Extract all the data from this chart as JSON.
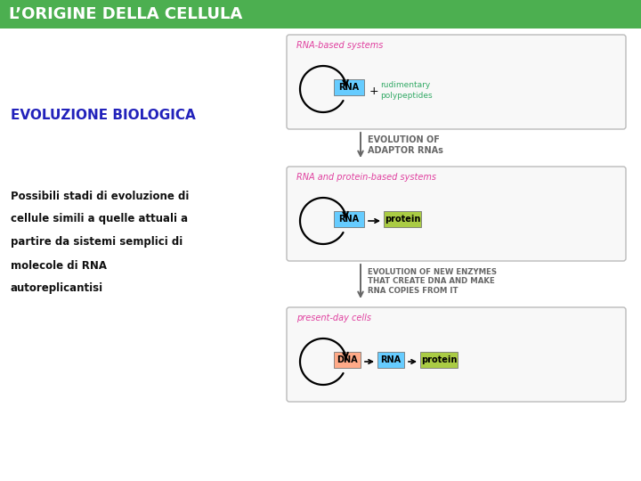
{
  "title": "L’ORIGINE DELLA CELLULA",
  "title_bg": "#4caf50",
  "title_color": "#ffffff",
  "subtitle": "EVOLUZIONE BIOLOGICA",
  "subtitle_color": "#2222bb",
  "body_text": [
    "Possibili stadi di evoluzione di",
    "cellule simili a quelle attuali a",
    "partire da sistemi semplici di",
    "molecole di RNA",
    "autoreplicantisi"
  ],
  "body_color": "#111111",
  "bg_color": "#ffffff",
  "box1_label": "RNA-based systems",
  "box1_label_color": "#e0409f",
  "box1_rna_color": "#66ccff",
  "box1_rna_text": "RNA",
  "box1_extra_color": "#33aa66",
  "arrow1_label": "EVOLUTION OF\nADAPTOR RNAs",
  "box2_label": "RNA and protein-based systems",
  "box2_label_color": "#e0409f",
  "box2_rna_color": "#66ccff",
  "box2_rna_text": "RNA",
  "box2_protein_color": "#aacc44",
  "box2_protein_text": "protein",
  "arrow2_label": "EVOLUTION OF NEW ENZYMES\nTHAT CREATE DNA AND MAKE\nRNA COPIES FROM IT",
  "box3_label": "present-day cells",
  "box3_label_color": "#e0409f",
  "box3_dna_color": "#ffaa88",
  "box3_dna_text": "DNA",
  "box3_rna_color": "#66ccff",
  "box3_rna_text": "RNA",
  "box3_protein_color": "#aacc44",
  "box3_protein_text": "protein",
  "box_border_color": "#bbbbbb",
  "box_bg": "#f8f8f8",
  "arrow_color": "#666666"
}
